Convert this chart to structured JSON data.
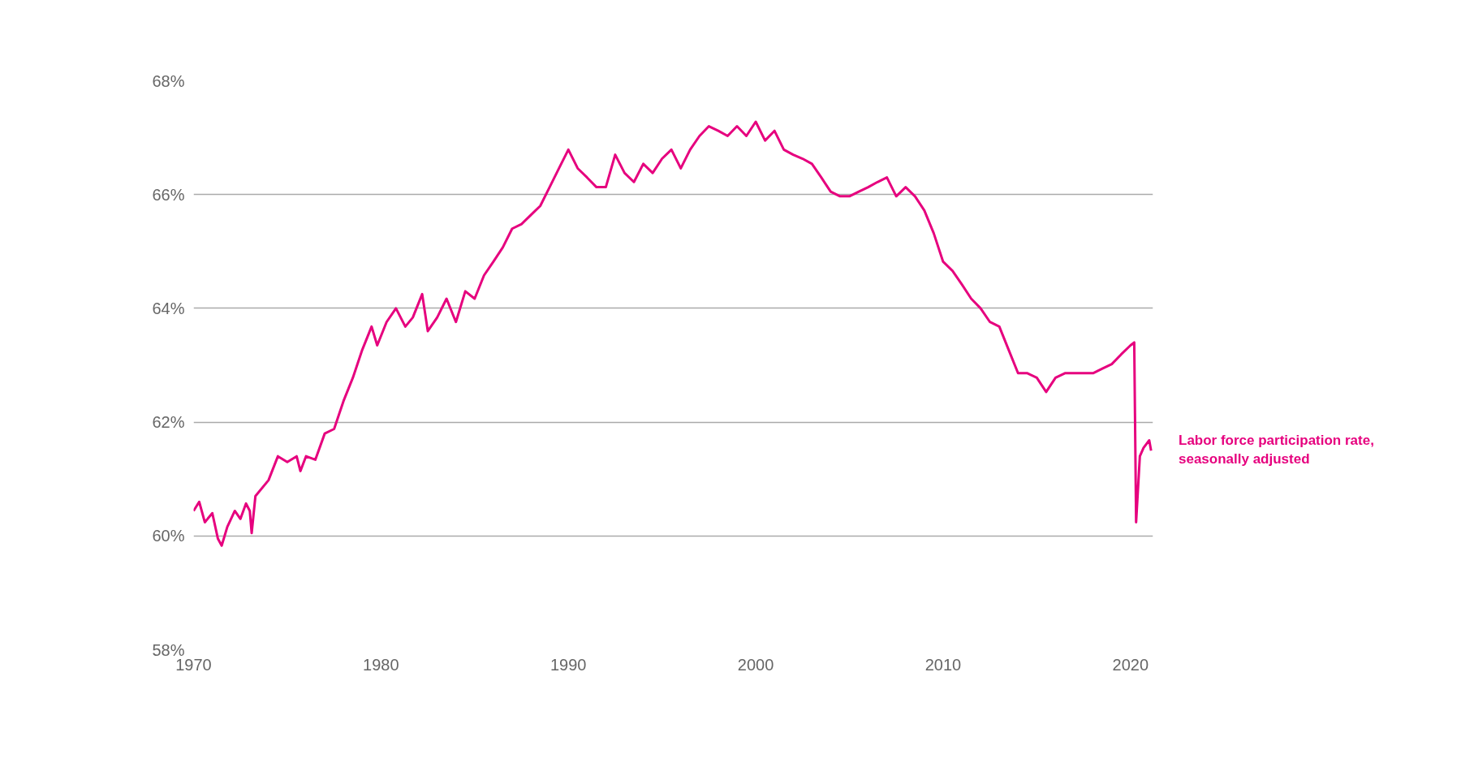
{
  "chart_data": {
    "type": "line",
    "x": [
      1970.0,
      1970.3,
      1970.6,
      1971.0,
      1971.3,
      1971.5,
      1971.8,
      1972.2,
      1972.5,
      1972.8,
      1973.0,
      1973.1,
      1973.3,
      1974.0,
      1974.5,
      1975.0,
      1975.5,
      1975.7,
      1976.0,
      1976.5,
      1977.0,
      1977.5,
      1978.0,
      1978.5,
      1979.0,
      1979.5,
      1979.8,
      1980.3,
      1980.8,
      1981.3,
      1981.7,
      1982.2,
      1982.5,
      1983.0,
      1983.5,
      1984.0,
      1984.5,
      1985.0,
      1985.5,
      1986.0,
      1986.5,
      1987.0,
      1987.5,
      1988.0,
      1988.5,
      1989.0,
      1989.5,
      1990.0,
      1990.5,
      1991.0,
      1991.5,
      1992.0,
      1992.5,
      1993.0,
      1993.5,
      1994.0,
      1994.5,
      1995.0,
      1995.5,
      1996.0,
      1996.5,
      1997.0,
      1997.5,
      1998.0,
      1998.5,
      1999.0,
      1999.5,
      2000.0,
      2000.5,
      2001.0,
      2001.5,
      2002.0,
      2002.5,
      2003.0,
      2003.5,
      2004.0,
      2004.5,
      2005.0,
      2005.5,
      2006.0,
      2006.5,
      2007.0,
      2007.5,
      2008.0,
      2008.5,
      2009.0,
      2009.5,
      2010.0,
      2010.5,
      2011.0,
      2011.5,
      2012.0,
      2012.5,
      2013.0,
      2013.5,
      2014.0,
      2014.5,
      2015.0,
      2015.5,
      2016.0,
      2016.5,
      2017.0,
      2017.5,
      2018.0,
      2018.5,
      2019.0,
      2019.5,
      2020.0,
      2020.2,
      2020.3,
      2020.5,
      2020.7,
      2021.0,
      2021.1
    ],
    "series": [
      {
        "name": "Labor force participation rate,\nseasonally adjusted",
        "color": "#e6007e",
        "values": [
          60.44,
          60.6,
          60.24,
          60.4,
          59.95,
          59.83,
          60.16,
          60.44,
          60.3,
          60.57,
          60.44,
          60.05,
          60.7,
          60.98,
          61.4,
          61.3,
          61.4,
          61.14,
          61.4,
          61.34,
          61.8,
          61.88,
          62.37,
          62.78,
          63.27,
          63.68,
          63.35,
          63.76,
          64.0,
          63.68,
          63.84,
          64.25,
          63.6,
          63.84,
          64.17,
          63.76,
          64.3,
          64.17,
          64.58,
          64.82,
          65.07,
          65.4,
          65.48,
          65.64,
          65.8,
          66.13,
          66.46,
          66.79,
          66.46,
          66.3,
          66.13,
          66.13,
          66.7,
          66.38,
          66.22,
          66.54,
          66.38,
          66.63,
          66.79,
          66.46,
          66.79,
          67.03,
          67.2,
          67.12,
          67.03,
          67.2,
          67.03,
          67.28,
          66.95,
          67.12,
          66.79,
          66.7,
          66.63,
          66.54,
          66.3,
          66.05,
          65.97,
          65.97,
          66.05,
          66.13,
          66.22,
          66.3,
          65.97,
          66.13,
          65.97,
          65.72,
          65.32,
          64.82,
          64.66,
          64.42,
          64.17,
          64.0,
          63.76,
          63.68,
          63.27,
          62.86,
          62.86,
          62.78,
          62.53,
          62.78,
          62.86,
          62.86,
          62.86,
          62.86,
          62.94,
          63.02,
          63.19,
          63.35,
          63.4,
          60.24,
          61.4,
          61.55,
          61.68,
          61.5
        ]
      }
    ],
    "xlim": [
      1970,
      2021.2
    ],
    "xticks": [
      1970,
      1980,
      1990,
      2000,
      2010,
      2020
    ],
    "ylim": [
      58,
      68
    ],
    "yticks": [
      {
        "value": 58,
        "label": "58%"
      },
      {
        "value": 60,
        "label": "60%"
      },
      {
        "value": 62,
        "label": "62%"
      },
      {
        "value": 64,
        "label": "64%"
      },
      {
        "value": 66,
        "label": "66%"
      },
      {
        "value": 68,
        "label": "68%"
      }
    ],
    "grid": "y"
  }
}
